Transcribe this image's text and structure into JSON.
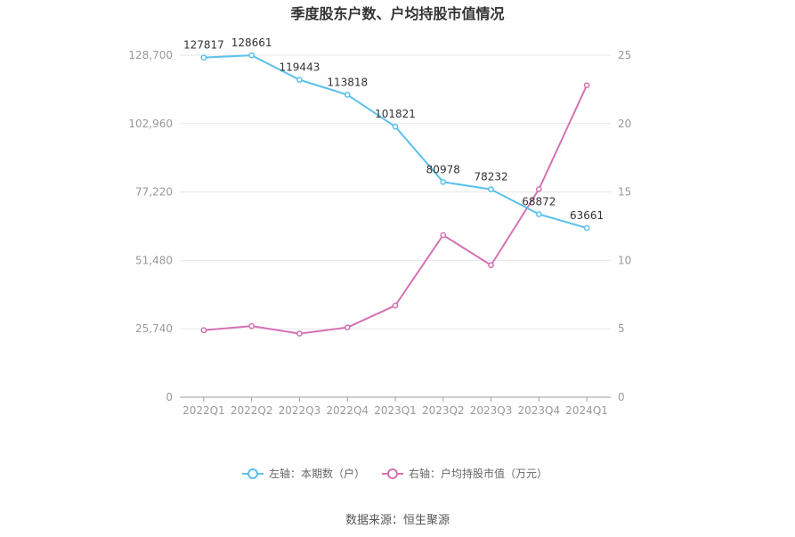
{
  "chart_data": {
    "type": "line",
    "title": "季度股东户数、户均持股市值情况",
    "categories": [
      "2022Q1",
      "2022Q2",
      "2022Q3",
      "2022Q4",
      "2023Q1",
      "2023Q2",
      "2023Q3",
      "2023Q4",
      "2024Q1"
    ],
    "left_axis": {
      "ticks": [
        "0",
        "25,740",
        "51,480",
        "77,220",
        "102,960",
        "128,700"
      ],
      "min": 0,
      "max": 128700
    },
    "right_axis": {
      "ticks": [
        "0",
        "5",
        "10",
        "15",
        "20",
        "25"
      ],
      "min": 0,
      "max": 25
    },
    "series": [
      {
        "name": "左轴：本期数（户）",
        "axis": "left",
        "color": "#5bc0eb",
        "values": [
          127817,
          128661,
          119443,
          113818,
          101821,
          80978,
          78232,
          68872,
          63661
        ],
        "labels": [
          "127817",
          "128661",
          "119443",
          "113818",
          "101821",
          "80978",
          "78232",
          "68872",
          "63661"
        ]
      },
      {
        "name": "右轴：户均持股市值（万元）",
        "axis": "right",
        "color": "#d572b4",
        "values": [
          4.9,
          5.2,
          4.65,
          5.1,
          6.7,
          11.85,
          9.65,
          15.2,
          22.8
        ]
      }
    ],
    "grid": true,
    "legend_position": "bottom"
  },
  "footer": {
    "source": "数据来源：恒生聚源"
  }
}
